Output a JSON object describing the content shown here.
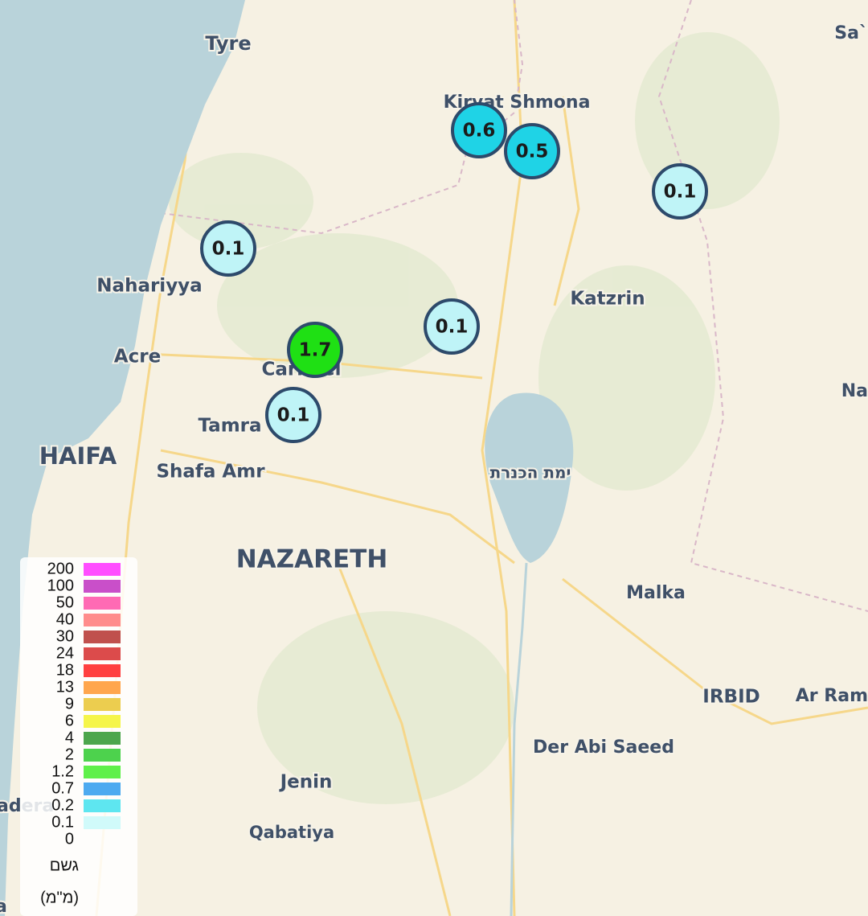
{
  "places": [
    "Tyre",
    "Kiryat Shmona",
    "Sa`",
    "Nahariyya",
    "Katzrin",
    "Acre",
    "Carmiel",
    "Tamra",
    "HAIFA",
    "Shafa Amr",
    "ימת הכנרת",
    "Na",
    "NAZARETH",
    "Malka",
    "IRBID",
    "Ar Ram",
    "Der Abi Saeed",
    "Jenin",
    "Qabatiya",
    "adera",
    "a"
  ],
  "stations": [
    {
      "value": 0.6,
      "color": "#1fd3e6"
    },
    {
      "value": 0.5,
      "color": "#1fd3e6"
    },
    {
      "value": 0.1,
      "color": "#bff4f7"
    },
    {
      "value": 0.1,
      "color": "#bff4f7"
    },
    {
      "value": 0.1,
      "color": "#bff4f7"
    },
    {
      "value": 1.7,
      "color": "#1fe014"
    },
    {
      "value": 0.1,
      "color": "#bff4f7"
    }
  ],
  "legend": {
    "levels": [
      200,
      100,
      50,
      40,
      30,
      24,
      18,
      13,
      9,
      6,
      4,
      2,
      1.2,
      0.7,
      0.2,
      0.1,
      0
    ],
    "colors": [
      "#ff4dff",
      "#c94fc9",
      "#ff6ab4",
      "#ff8c8c",
      "#c0504d",
      "#dc4b4b",
      "#ff4040",
      "#ffa64d",
      "#eccd4f",
      "#f5f54a",
      "#4ca64c",
      "#4dd24d",
      "#5ef04a",
      "#4daaf0",
      "#5ee6f0",
      "#d0fafa"
    ],
    "title": "גשם",
    "unit": "(מ\"מ)"
  }
}
